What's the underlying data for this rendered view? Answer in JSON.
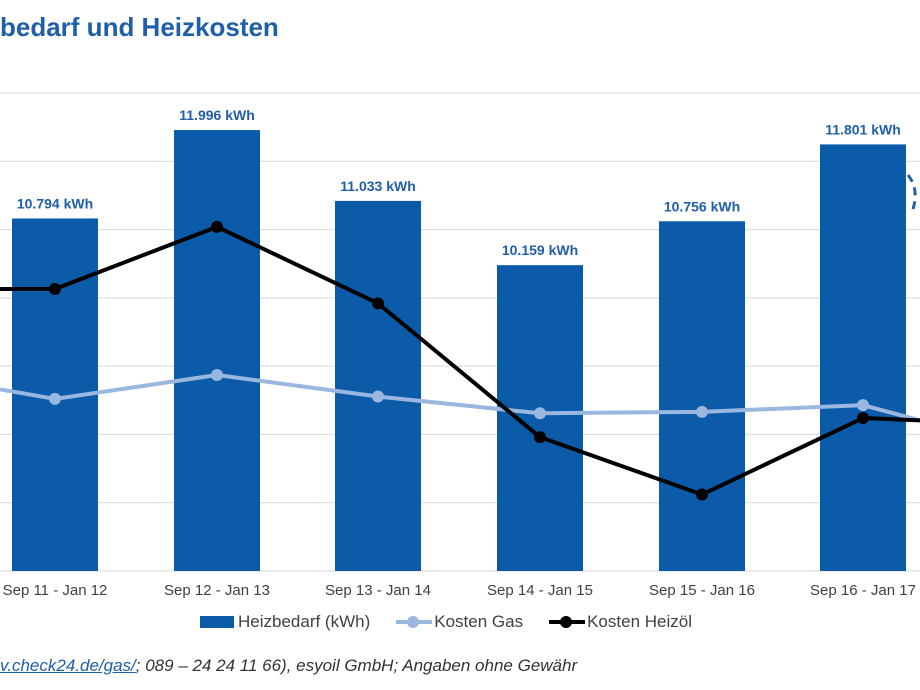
{
  "title": "bedarf und Heizkosten",
  "colors": {
    "bar": "#0b5ba8",
    "gas": "#9ab7e0",
    "oil": "#000000",
    "label": "#1f5ea8",
    "grid": "#d9d9d9"
  },
  "chart_data": {
    "type": "bar",
    "categories": [
      "Sep 11 - Jan 12",
      "Sep 12 - Jan 13",
      "Sep 13 - Jan 14",
      "Sep 14 - Jan 15",
      "Sep 15 - Jan 16",
      "Sep 16 - Jan 17"
    ],
    "series": [
      {
        "name": "Heizbedarf (kWh)",
        "type": "bar",
        "values": [
          10794,
          11996,
          11033,
          10159,
          10756,
          11801
        ],
        "data_labels": [
          "10.794 kWh",
          "11.996 kWh",
          "11.033 kWh",
          "10.159 kWh",
          "10.756 kWh",
          "11.801 kWh"
        ]
      },
      {
        "name": "Kosten Gas",
        "type": "line",
        "values": [
          0.36,
          0.41,
          0.365,
          0.33,
          0.333,
          0.347
        ]
      },
      {
        "name": "Kosten Heizöl",
        "type": "line",
        "values": [
          0.59,
          0.72,
          0.56,
          0.28,
          0.16,
          0.32
        ]
      }
    ],
    "ylim": [
      6000,
      12500
    ],
    "line_ylim": [
      0,
      1
    ],
    "grid": true,
    "legend_position": "bottom"
  },
  "legend": {
    "bar": "Heizbedarf (kWh)",
    "gas": "Kosten Gas",
    "oil": "Kosten Heizöl"
  },
  "source": {
    "link": "v.check24.de/gas/",
    "rest": "; 089 – 24 24 11 66), esyoil GmbH; Angaben ohne Gewähr"
  }
}
